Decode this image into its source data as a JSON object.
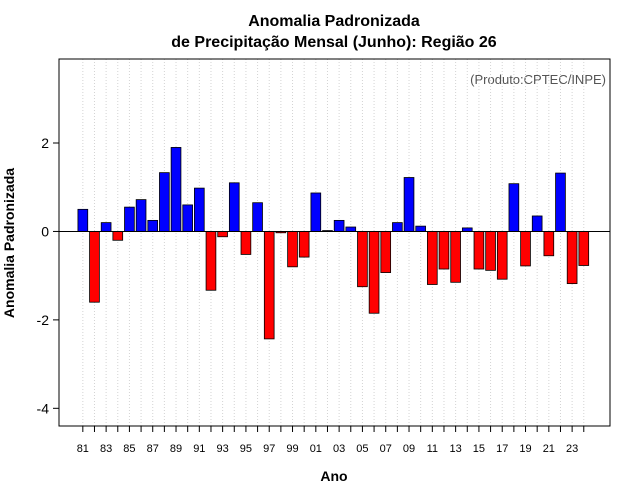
{
  "chart_data": {
    "type": "bar",
    "title": "Anomalia Padronizada",
    "subtitle": "de Precipitação Mensal (Junho): Região 26",
    "xlabel": "Ano",
    "ylabel": "Anomalia Padronizada",
    "credit": "(Produto:CPTEC/INPE)",
    "ylim": [
      -4.4,
      3.9
    ],
    "yticks": [
      -4,
      -2,
      0,
      2
    ],
    "ytick_labels": [
      "-4",
      "-2",
      "0",
      "2"
    ],
    "grid": true,
    "positive_color": "#0000ff",
    "negative_color": "#ff0000",
    "categories": [
      "1981",
      "1982",
      "1983",
      "1984",
      "1985",
      "1986",
      "1987",
      "1988",
      "1989",
      "1990",
      "1991",
      "1992",
      "1993",
      "1994",
      "1995",
      "1996",
      "1997",
      "1998",
      "1999",
      "2000",
      "2001",
      "2002",
      "2003",
      "2004",
      "2005",
      "2006",
      "2007",
      "2008",
      "2009",
      "2010",
      "2011",
      "2012",
      "2013",
      "2014",
      "2015",
      "2016",
      "2017",
      "2018",
      "2019",
      "2020",
      "2021",
      "2022",
      "2023",
      "2024"
    ],
    "xtick_labels": [
      "81",
      "83",
      "85",
      "87",
      "89",
      "91",
      "93",
      "95",
      "97",
      "99",
      "01",
      "03",
      "05",
      "07",
      "09",
      "11",
      "13",
      "15",
      "17",
      "19",
      "21",
      "23"
    ],
    "values": [
      0.5,
      -1.6,
      0.2,
      -0.2,
      0.55,
      0.72,
      0.25,
      1.33,
      1.9,
      0.6,
      0.98,
      -1.33,
      -0.12,
      1.1,
      -0.52,
      0.65,
      -2.43,
      -0.03,
      -0.8,
      -0.58,
      0.87,
      0.02,
      0.25,
      0.1,
      -1.25,
      -1.85,
      -0.93,
      0.2,
      1.22,
      0.12,
      -1.2,
      -0.85,
      -1.15,
      0.08,
      -0.85,
      -0.88,
      -1.08,
      1.08,
      -0.78,
      0.35,
      -0.55,
      1.32,
      -1.18,
      -0.77
    ]
  }
}
